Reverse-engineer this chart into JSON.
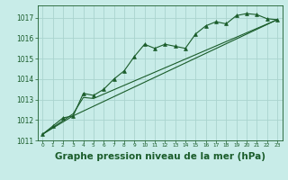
{
  "background_color": "#c8ece8",
  "plot_bg_color": "#c8ece8",
  "grid_color": "#aad4ce",
  "line_color": "#1a5c2a",
  "marker_color": "#1a5c2a",
  "xlabel": "Graphe pression niveau de la mer (hPa)",
  "xlabel_fontsize": 7.5,
  "xlim": [
    -0.5,
    23.5
  ],
  "ylim": [
    1011,
    1017.6
  ],
  "yticks": [
    1011,
    1012,
    1013,
    1014,
    1015,
    1016,
    1017
  ],
  "xticks": [
    0,
    1,
    2,
    3,
    4,
    5,
    6,
    7,
    8,
    9,
    10,
    11,
    12,
    13,
    14,
    15,
    16,
    17,
    18,
    19,
    20,
    21,
    22,
    23
  ],
  "series1_x": [
    0,
    1,
    2,
    3,
    4,
    5,
    6,
    7,
    8,
    9,
    10,
    11,
    12,
    13,
    14,
    15,
    16,
    17,
    18,
    19,
    20,
    21,
    22,
    23
  ],
  "series1_y": [
    1011.3,
    1011.7,
    1012.1,
    1012.2,
    1013.3,
    1013.2,
    1013.5,
    1014.0,
    1014.4,
    1015.1,
    1015.7,
    1015.5,
    1015.7,
    1015.6,
    1015.5,
    1016.2,
    1016.6,
    1016.8,
    1016.7,
    1017.1,
    1017.2,
    1017.15,
    1016.95,
    1016.9
  ],
  "series2_x": [
    0,
    3,
    4,
    5,
    23
  ],
  "series2_y": [
    1011.3,
    1012.3,
    1013.1,
    1013.05,
    1016.9
  ],
  "series3_x": [
    0,
    3,
    23
  ],
  "series3_y": [
    1011.3,
    1012.2,
    1016.9
  ],
  "figsize": [
    3.2,
    2.0
  ],
  "dpi": 100
}
